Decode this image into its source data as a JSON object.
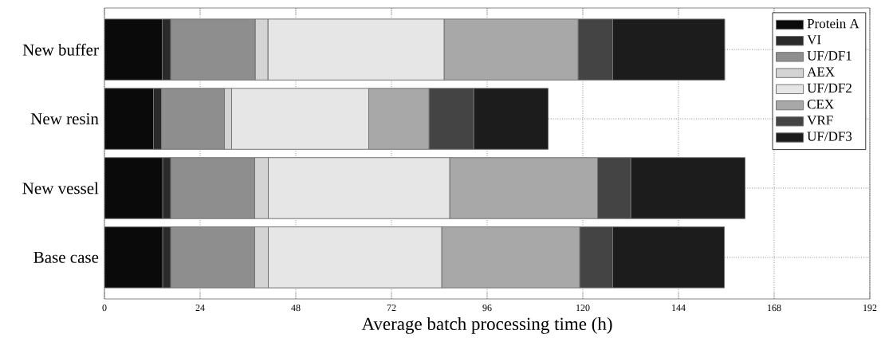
{
  "chart_data": {
    "type": "bar",
    "orientation": "horizontal",
    "stacked": true,
    "xlabel": "Average batch processing time (h)",
    "categories": [
      "New buffer",
      "New resin",
      "New vessel",
      "Base case"
    ],
    "series": [
      {
        "name": "Protein A",
        "color": "#0a0a0a",
        "values": [
          14.5,
          12.3,
          14.6,
          14.6
        ]
      },
      {
        "name": "VI",
        "color": "#2a2a2a",
        "values": [
          2.1,
          2.0,
          2.0,
          2.0
        ]
      },
      {
        "name": "UF/DF1",
        "color": "#8e8e8e",
        "values": [
          21.2,
          15.8,
          21.1,
          21.1
        ]
      },
      {
        "name": "AEX",
        "color": "#d4d4d4",
        "values": [
          3.2,
          1.8,
          3.4,
          3.4
        ]
      },
      {
        "name": "UF/DF2",
        "color": "#e6e6e6",
        "values": [
          44.2,
          34.4,
          45.5,
          43.5
        ]
      },
      {
        "name": "CEX",
        "color": "#a8a8a8",
        "values": [
          33.6,
          15.1,
          37.1,
          34.6
        ]
      },
      {
        "name": "VRF",
        "color": "#444444",
        "values": [
          8.7,
          11.2,
          8.3,
          8.3
        ]
      },
      {
        "name": "UF/DF3",
        "color": "#1c1c1c",
        "values": [
          28.1,
          18.7,
          28.7,
          28.0
        ]
      }
    ],
    "xlim": [
      0,
      192
    ],
    "xticks": [
      0,
      24,
      48,
      72,
      96,
      120,
      144,
      168,
      192
    ],
    "grid": true,
    "legend": "top right"
  }
}
